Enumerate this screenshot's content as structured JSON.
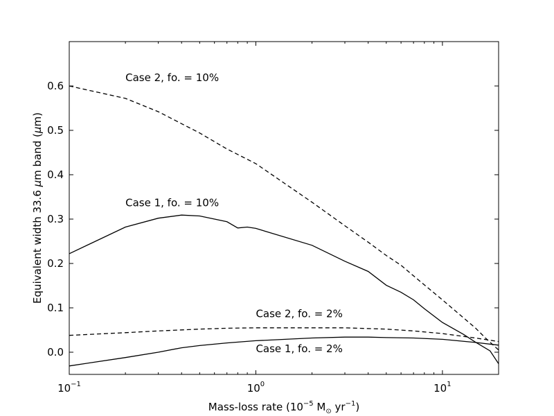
{
  "chart_data": {
    "type": "line",
    "title": "",
    "xscale": "log",
    "xlim": [
      0.1,
      20
    ],
    "ylim": [
      -0.05,
      0.7
    ],
    "grid": false,
    "xlabel": {
      "pre": "Mass-loss rate (",
      "base": "10",
      "exp": "−5",
      "mid": " M",
      "sun_symbol": "⊙",
      "post1": " yr",
      "exp2": "−1",
      "post2": ")"
    },
    "ylabel": {
      "pre": "Equivalent width 33.6 ",
      "mu": "μ",
      "post": "m band (",
      "mu2": "μ",
      "post2": "m)"
    },
    "x_ticks": [
      {
        "value": 0.1,
        "base": "10",
        "exp": "−1"
      },
      {
        "value": 1,
        "base": "10",
        "exp": "0"
      },
      {
        "value": 10,
        "base": "10",
        "exp": "1"
      }
    ],
    "y_ticks": [
      {
        "value": 0.0,
        "label": "0.0"
      },
      {
        "value": 0.1,
        "label": "0.1"
      },
      {
        "value": 0.2,
        "label": "0.2"
      },
      {
        "value": 0.3,
        "label": "0.3"
      },
      {
        "value": 0.4,
        "label": "0.4"
      },
      {
        "value": 0.5,
        "label": "0.5"
      },
      {
        "value": 0.6,
        "label": "0.6"
      }
    ],
    "series": [
      {
        "style": "dashed",
        "color": "#000000",
        "x": [
          0.1,
          0.2,
          0.3,
          0.4,
          0.5,
          0.7,
          1.0,
          2.0,
          3.0,
          4.0,
          5.0,
          6.0,
          7.0,
          10.0,
          13.0,
          15.0,
          17.0,
          20.0
        ],
        "y": [
          0.6,
          0.572,
          0.542,
          0.515,
          0.494,
          0.458,
          0.425,
          0.338,
          0.285,
          0.248,
          0.218,
          0.196,
          0.172,
          0.118,
          0.077,
          0.055,
          0.032,
          0.005
        ]
      },
      {
        "style": "solid",
        "color": "#000000",
        "x": [
          0.1,
          0.2,
          0.3,
          0.4,
          0.5,
          0.7,
          0.8,
          0.9,
          1.0,
          2.0,
          3.0,
          4.0,
          5.0,
          6.0,
          7.0,
          8.0,
          10.0,
          13.0,
          15.0,
          18.0,
          20.0
        ],
        "y": [
          0.222,
          0.282,
          0.302,
          0.309,
          0.307,
          0.294,
          0.28,
          0.282,
          0.279,
          0.241,
          0.205,
          0.182,
          0.151,
          0.135,
          0.118,
          0.098,
          0.067,
          0.04,
          0.023,
          0.003,
          -0.026
        ]
      },
      {
        "style": "dashed",
        "color": "#000000",
        "x": [
          0.1,
          0.2,
          0.3,
          0.5,
          0.7,
          1.0,
          2.0,
          3.0,
          5.0,
          7.0,
          10.0,
          15.0,
          20.0
        ],
        "y": [
          0.038,
          0.044,
          0.048,
          0.052,
          0.054,
          0.055,
          0.055,
          0.055,
          0.052,
          0.048,
          0.042,
          0.032,
          0.024
        ]
      },
      {
        "style": "solid",
        "color": "#000000",
        "x": [
          0.1,
          0.2,
          0.3,
          0.4,
          0.5,
          0.7,
          1.0,
          2.0,
          3.0,
          4.0,
          5.0,
          7.0,
          10.0,
          15.0,
          20.0
        ],
        "y": [
          -0.031,
          -0.012,
          0.0,
          0.01,
          0.015,
          0.021,
          0.026,
          0.032,
          0.034,
          0.034,
          0.033,
          0.032,
          0.029,
          0.022,
          0.016
        ]
      }
    ],
    "annotations": [
      {
        "text": "Case 2, fo. = 10%",
        "x": 0.2,
        "y": 0.611
      },
      {
        "text": "Case 1, fo. = 10%",
        "x": 0.2,
        "y": 0.329
      },
      {
        "text": "Case 2, fo. = 2%",
        "x": 1.0,
        "y": 0.079
      },
      {
        "text": "Case 1, fo. = 2%",
        "x": 1.0,
        "y": 0.0
      }
    ]
  }
}
